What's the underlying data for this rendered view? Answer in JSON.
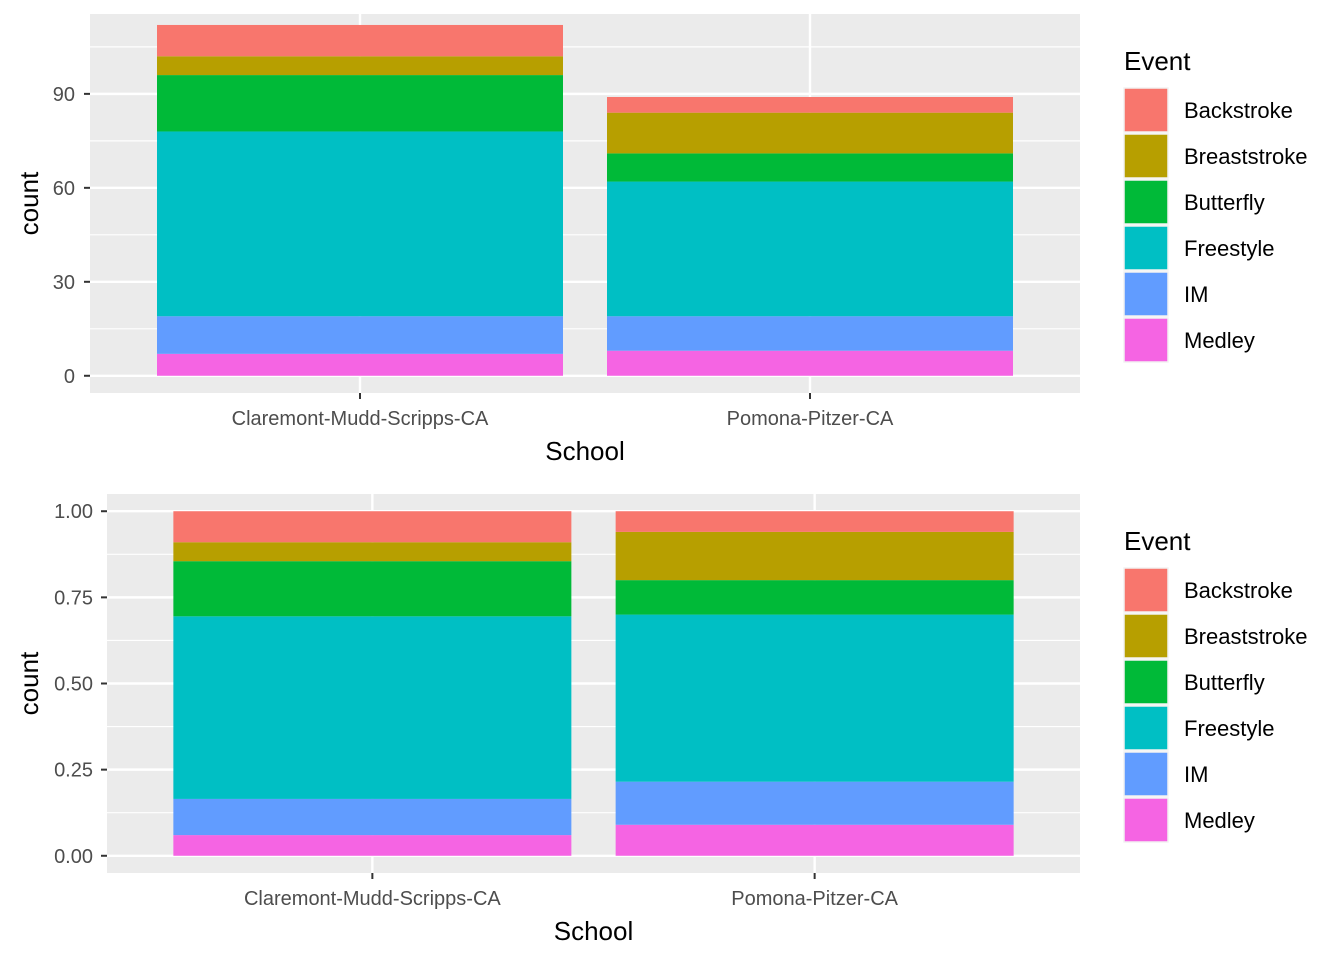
{
  "colors": {
    "panel": "#EBEBEB",
    "grid": "#FFFFFF",
    "tick_text": "#4D4D4D",
    "tick_mark": "#333333"
  },
  "chart_data": [
    {
      "type": "bar",
      "stacked": true,
      "categories": [
        "Claremont-Mudd-Scripps-CA",
        "Pomona-Pitzer-CA"
      ],
      "series": [
        {
          "name": "Backstroke",
          "color": "#F8766D",
          "values": [
            10,
            5
          ]
        },
        {
          "name": "Breaststroke",
          "color": "#B79F00",
          "values": [
            6,
            13
          ]
        },
        {
          "name": "Butterfly",
          "color": "#00BA38",
          "values": [
            18,
            9
          ]
        },
        {
          "name": "Freestyle",
          "color": "#00BFC4",
          "values": [
            59,
            43
          ]
        },
        {
          "name": "IM",
          "color": "#619CFF",
          "values": [
            12,
            11
          ]
        },
        {
          "name": "Medley",
          "color": "#F564E3",
          "values": [
            7,
            8
          ]
        }
      ],
      "xlabel": "School",
      "ylabel": "count",
      "ylim": [
        -5.5,
        115.5
      ],
      "yticks": [
        0,
        30,
        60,
        90
      ],
      "ytick_labels": [
        "0",
        "30",
        "60",
        "90"
      ],
      "grid": true,
      "legend": {
        "title": "Event",
        "position": "right"
      }
    },
    {
      "type": "bar",
      "stacked": true,
      "normalized": true,
      "categories": [
        "Claremont-Mudd-Scripps-CA",
        "Pomona-Pitzer-CA"
      ],
      "series": [
        {
          "name": "Backstroke",
          "color": "#F8766D",
          "values": [
            0.09,
            0.06
          ]
        },
        {
          "name": "Breaststroke",
          "color": "#B79F00",
          "values": [
            0.055,
            0.14
          ]
        },
        {
          "name": "Butterfly",
          "color": "#00BA38",
          "values": [
            0.16,
            0.1
          ]
        },
        {
          "name": "Freestyle",
          "color": "#00BFC4",
          "values": [
            0.53,
            0.485
          ]
        },
        {
          "name": "IM",
          "color": "#619CFF",
          "values": [
            0.105,
            0.125
          ]
        },
        {
          "name": "Medley",
          "color": "#F564E3",
          "values": [
            0.06,
            0.09
          ]
        }
      ],
      "xlabel": "School",
      "ylabel": "count",
      "ylim": [
        -0.05,
        1.05
      ],
      "yticks": [
        0,
        0.25,
        0.5,
        0.75,
        1.0
      ],
      "ytick_labels": [
        "0.00",
        "0.25",
        "0.50",
        "0.75",
        "1.00"
      ],
      "grid": true,
      "legend": {
        "title": "Event",
        "position": "right"
      }
    }
  ]
}
